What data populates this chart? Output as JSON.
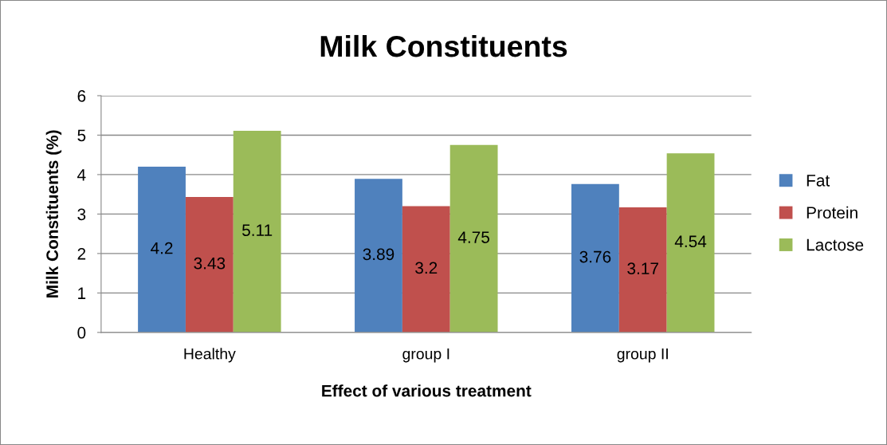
{
  "chart_data": {
    "type": "bar",
    "title": "Milk Constituents",
    "xlabel": "Effect of various treatment",
    "ylabel": "Milk Constituents (%)",
    "categories": [
      "Healthy",
      "group I",
      "group II"
    ],
    "series": [
      {
        "name": "Fat",
        "color": "#4f81bd",
        "values": [
          4.2,
          3.89,
          3.76
        ]
      },
      {
        "name": "Protein",
        "color": "#c0504d",
        "values": [
          3.43,
          3.2,
          3.17
        ]
      },
      {
        "name": "Lactose",
        "color": "#9bbb59",
        "values": [
          5.11,
          4.75,
          4.54
        ]
      }
    ],
    "ylim": [
      0,
      6
    ],
    "yticks": [
      0,
      1,
      2,
      3,
      4,
      5,
      6
    ],
    "grid": "y",
    "legend": "right",
    "data_labels": true
  }
}
